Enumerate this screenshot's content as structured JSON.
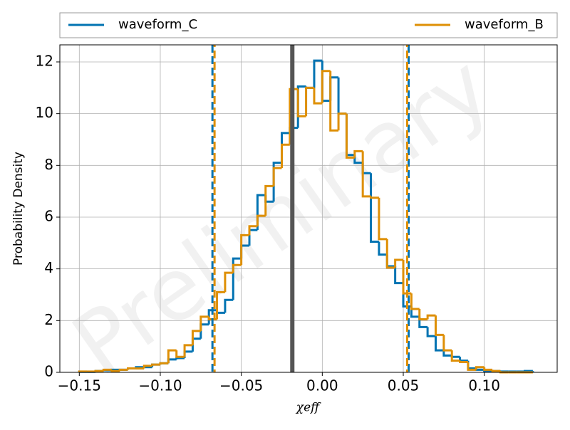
{
  "chart_data": {
    "type": "step_histogram",
    "watermark": "Preliminary",
    "xlabel": "χeff",
    "ylabel": "Probability Density",
    "bins": [
      -0.15,
      -0.145,
      -0.14,
      -0.135,
      -0.13,
      -0.125,
      -0.12,
      -0.115,
      -0.11,
      -0.105,
      -0.1,
      -0.095,
      -0.09,
      -0.085,
      -0.08,
      -0.075,
      -0.07,
      -0.065,
      -0.06,
      -0.055,
      -0.05,
      -0.045,
      -0.04,
      -0.035,
      -0.03,
      -0.025,
      -0.02,
      -0.015,
      -0.01,
      -0.005,
      0,
      0.005,
      0.01,
      0.015,
      0.02,
      0.025,
      0.03,
      0.035,
      0.04,
      0.045,
      0.05,
      0.055,
      0.06,
      0.065,
      0.07,
      0.075,
      0.08,
      0.085,
      0.09,
      0.095,
      0.1,
      0.105,
      0.11,
      0.115,
      0.12,
      0.125,
      0.13
    ],
    "series": [
      {
        "name": "waveform_C",
        "color": "#0173b2",
        "values": [
          0.02,
          0.02,
          0.05,
          0.08,
          0.1,
          0.1,
          0.15,
          0.2,
          0.2,
          0.3,
          0.35,
          0.5,
          0.55,
          0.8,
          1.3,
          1.85,
          2.4,
          2.3,
          2.8,
          4.4,
          4.9,
          5.5,
          6.85,
          6.6,
          8.1,
          9.25,
          9.45,
          11.05,
          11.0,
          12.05,
          10.5,
          11.4,
          10.0,
          8.4,
          8.1,
          7.7,
          5.05,
          4.55,
          4.1,
          3.45,
          2.55,
          2.15,
          1.75,
          1.4,
          0.85,
          0.65,
          0.6,
          0.45,
          0.15,
          0.1,
          0.05,
          0.05,
          0.03,
          0.03,
          0.03,
          0.05
        ]
      },
      {
        "name": "waveform_B",
        "color": "#de8f05",
        "values": [
          0.03,
          0.03,
          0.05,
          0.1,
          0.05,
          0.1,
          0.15,
          0.15,
          0.25,
          0.3,
          0.35,
          0.85,
          0.6,
          1.05,
          1.6,
          2.15,
          2.05,
          3.1,
          3.85,
          4.15,
          5.3,
          5.65,
          6.05,
          7.2,
          7.9,
          8.8,
          10.95,
          9.9,
          11.0,
          10.4,
          11.65,
          9.35,
          10.0,
          8.3,
          8.55,
          6.8,
          6.75,
          5.15,
          4.05,
          4.35,
          3.05,
          2.45,
          2.05,
          2.2,
          1.45,
          0.85,
          0.45,
          0.4,
          0.1,
          0.2,
          0.1,
          0.05,
          0,
          0,
          0,
          0
        ]
      }
    ],
    "vlines": [
      {
        "x": -0.0678,
        "color": "#0173b2",
        "dashed": true
      },
      {
        "x": -0.0665,
        "color": "#de8f05",
        "dashed": true
      },
      {
        "x": 0.0533,
        "color": "#0173b2",
        "dashed": true
      },
      {
        "x": 0.0524,
        "color": "#de8f05",
        "dashed": true
      },
      {
        "x": -0.0185,
        "color": "#555555",
        "dashed": false
      }
    ],
    "xlim": [
      -0.162,
      0.145
    ],
    "ylim": [
      0,
      12.66
    ],
    "xticks": [
      {
        "value": -0.15,
        "label": "−0.15"
      },
      {
        "value": -0.1,
        "label": "−0.10"
      },
      {
        "value": -0.05,
        "label": "−0.05"
      },
      {
        "value": 0,
        "label": "0.00"
      },
      {
        "value": 0.05,
        "label": "0.05"
      },
      {
        "value": 0.1,
        "label": "0.10"
      }
    ],
    "yticks": [
      0,
      2,
      4,
      6,
      8,
      10,
      12
    ],
    "grid": true,
    "legend": "top"
  }
}
